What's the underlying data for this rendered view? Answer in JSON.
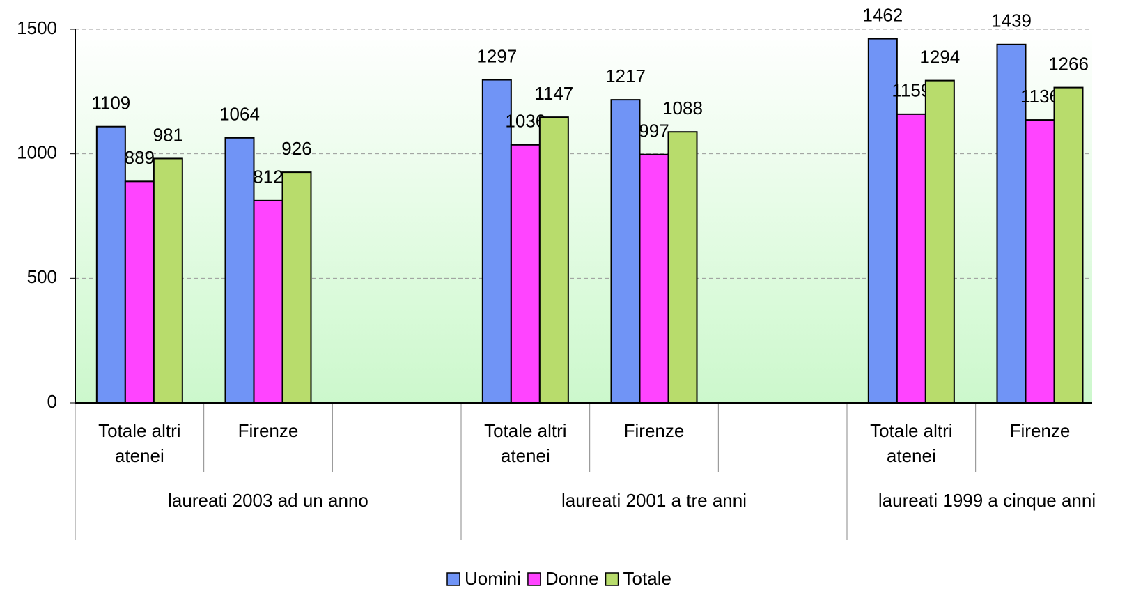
{
  "chart_data": {
    "type": "bar",
    "groups": [
      {
        "name": "laureati 2003 ad un anno",
        "categories": [
          "Totale altri atenei",
          "Firenze",
          null
        ]
      },
      {
        "name": "laureati 2001 a tre anni",
        "categories": [
          "Totale altri atenei",
          "Firenze",
          null
        ]
      },
      {
        "name": "laureati 1999 a cinque anni",
        "categories": [
          "Totale altri atenei",
          "Firenze"
        ]
      }
    ],
    "series": [
      {
        "name": "Uomini",
        "color": "#7094f6",
        "values": [
          1109,
          1064,
          null,
          1297,
          1217,
          null,
          1462,
          1439
        ]
      },
      {
        "name": "Donne",
        "color": "#ff44ff",
        "values": [
          889,
          812,
          null,
          1036,
          997,
          null,
          1159,
          1136
        ]
      },
      {
        "name": "Totale",
        "color": "#b8dc6c",
        "values": [
          981,
          926,
          null,
          1147,
          1088,
          null,
          1294,
          1266
        ]
      }
    ],
    "ylim": [
      0,
      1500
    ],
    "yticks": [
      0,
      500,
      1000,
      1500
    ],
    "grid": true,
    "legend": "bottom"
  }
}
